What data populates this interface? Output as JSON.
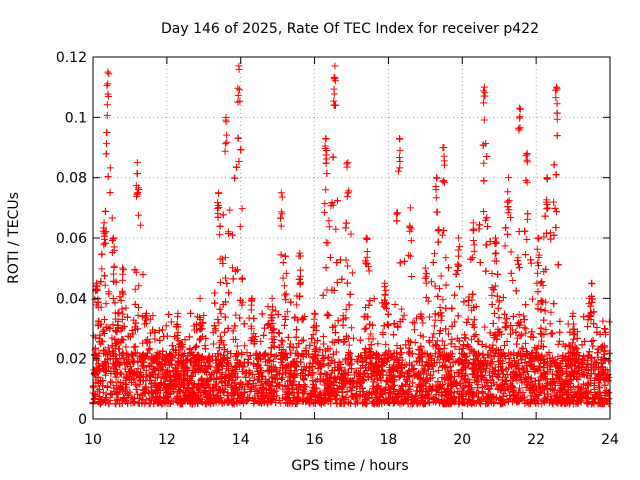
{
  "chart_data": {
    "type": "scatter",
    "title": "Day 146 of 2025, Rate Of TEC Index for receiver p422",
    "xlabel": "GPS time / hours",
    "ylabel": "ROTI / TECUs",
    "xlim": [
      10,
      24
    ],
    "ylim": [
      0,
      0.12
    ],
    "xticks": [
      10,
      12,
      14,
      16,
      18,
      20,
      22,
      24
    ],
    "xtick_labels": [
      "10",
      "12",
      "14",
      "16",
      "18",
      "20",
      "22",
      "24"
    ],
    "yticks": [
      0,
      0.02,
      0.04,
      0.06,
      0.08,
      0.1,
      0.12
    ],
    "ytick_labels": [
      "0",
      "0.02",
      "0.04",
      "0.06",
      "0.08",
      "0.1",
      "0.12"
    ],
    "grid": true,
    "marker": "+",
    "color": "#ff0000",
    "baseline_range": [
      0.005,
      0.022
    ],
    "spikes": [
      {
        "x": 10.1,
        "peak": 0.045
      },
      {
        "x": 10.3,
        "peak": 0.065
      },
      {
        "x": 10.4,
        "peak": 0.115
      },
      {
        "x": 10.55,
        "peak": 0.06
      },
      {
        "x": 10.8,
        "peak": 0.05
      },
      {
        "x": 11.2,
        "peak": 0.085
      },
      {
        "x": 11.45,
        "peak": 0.035
      },
      {
        "x": 12.3,
        "peak": 0.035
      },
      {
        "x": 12.9,
        "peak": 0.04
      },
      {
        "x": 13.4,
        "peak": 0.075
      },
      {
        "x": 13.6,
        "peak": 0.1
      },
      {
        "x": 13.95,
        "peak": 0.117
      },
      {
        "x": 14.3,
        "peak": 0.04
      },
      {
        "x": 14.85,
        "peak": 0.04
      },
      {
        "x": 15.1,
        "peak": 0.075
      },
      {
        "x": 15.6,
        "peak": 0.055
      },
      {
        "x": 16.0,
        "peak": 0.035
      },
      {
        "x": 16.3,
        "peak": 0.093
      },
      {
        "x": 16.55,
        "peak": 0.117
      },
      {
        "x": 16.9,
        "peak": 0.085
      },
      {
        "x": 17.4,
        "peak": 0.06
      },
      {
        "x": 17.9,
        "peak": 0.045
      },
      {
        "x": 18.3,
        "peak": 0.093
      },
      {
        "x": 18.6,
        "peak": 0.07
      },
      {
        "x": 19.0,
        "peak": 0.05
      },
      {
        "x": 19.3,
        "peak": 0.08
      },
      {
        "x": 19.5,
        "peak": 0.09
      },
      {
        "x": 19.9,
        "peak": 0.06
      },
      {
        "x": 20.3,
        "peak": 0.065
      },
      {
        "x": 20.6,
        "peak": 0.11
      },
      {
        "x": 20.9,
        "peak": 0.06
      },
      {
        "x": 21.25,
        "peak": 0.08
      },
      {
        "x": 21.55,
        "peak": 0.103
      },
      {
        "x": 21.75,
        "peak": 0.088
      },
      {
        "x": 22.05,
        "peak": 0.06
      },
      {
        "x": 22.3,
        "peak": 0.08
      },
      {
        "x": 22.55,
        "peak": 0.11
      },
      {
        "x": 23.0,
        "peak": 0.035
      },
      {
        "x": 23.5,
        "peak": 0.045
      },
      {
        "x": 23.85,
        "peak": 0.03
      }
    ],
    "num_points": 7500
  }
}
